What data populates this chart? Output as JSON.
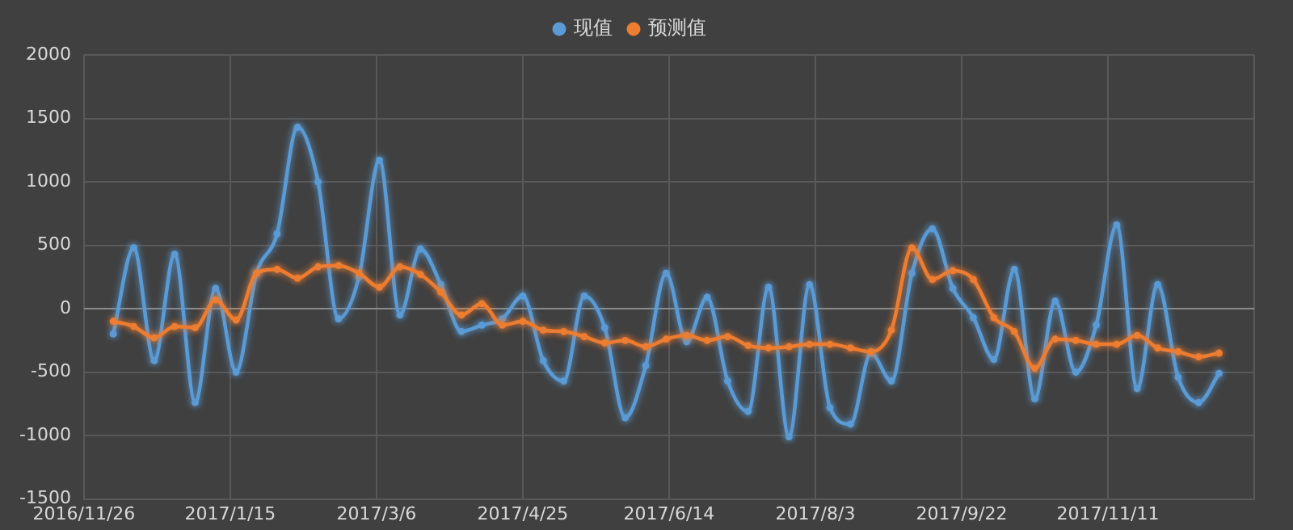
{
  "chart_data": {
    "type": "line",
    "x": [
      "2016-12-06",
      "2016-12-13",
      "2016-12-20",
      "2016-12-27",
      "2017-01-03",
      "2017-01-10",
      "2017-01-17",
      "2017-01-24",
      "2017-01-31",
      "2017-02-07",
      "2017-02-14",
      "2017-02-21",
      "2017-02-28",
      "2017-03-07",
      "2017-03-14",
      "2017-03-21",
      "2017-03-28",
      "2017-04-04",
      "2017-04-11",
      "2017-04-18",
      "2017-04-25",
      "2017-05-02",
      "2017-05-09",
      "2017-05-16",
      "2017-05-23",
      "2017-05-30",
      "2017-06-06",
      "2017-06-13",
      "2017-06-20",
      "2017-06-27",
      "2017-07-04",
      "2017-07-11",
      "2017-07-18",
      "2017-07-25",
      "2017-08-01",
      "2017-08-08",
      "2017-08-15",
      "2017-08-22",
      "2017-08-29",
      "2017-09-05",
      "2017-09-12",
      "2017-09-19",
      "2017-09-26",
      "2017-10-03",
      "2017-10-10",
      "2017-10-17",
      "2017-10-24",
      "2017-10-31",
      "2017-11-07",
      "2017-11-14",
      "2017-11-21",
      "2017-11-28",
      "2017-12-05",
      "2017-12-12",
      "2017-12-19"
    ],
    "series": [
      {
        "name": "现值",
        "color": "#5b9bd5",
        "values": [
          -200,
          480,
          -410,
          430,
          -740,
          160,
          -500,
          280,
          590,
          1430,
          1000,
          -80,
          250,
          1170,
          -50,
          470,
          190,
          -180,
          -130,
          -80,
          100,
          -410,
          -570,
          100,
          -150,
          -860,
          -450,
          280,
          -260,
          90,
          -570,
          -810,
          170,
          -1010,
          190,
          -780,
          -910,
          -350,
          -570,
          280,
          630,
          160,
          -70,
          -400,
          310,
          -710,
          60,
          -500,
          -130,
          660,
          -630,
          190,
          -540,
          -740,
          -510
        ]
      },
      {
        "name": "预测值",
        "color": "#ed7d31",
        "values": [
          -100,
          -140,
          -230,
          -140,
          -150,
          70,
          -90,
          280,
          310,
          240,
          330,
          340,
          280,
          170,
          330,
          270,
          130,
          -50,
          40,
          -130,
          -100,
          -170,
          -180,
          -220,
          -270,
          -250,
          -300,
          -240,
          -210,
          -250,
          -220,
          -290,
          -310,
          -300,
          -280,
          -280,
          -310,
          -340,
          -170,
          480,
          230,
          300,
          230,
          -70,
          -180,
          -470,
          -240,
          -250,
          -280,
          -280,
          -210,
          -310,
          -340,
          -380,
          -350
        ]
      }
    ],
    "xlim": [
      "2016-11-26",
      "2017-12-31"
    ],
    "xticks": [
      {
        "value": "2016-11-26",
        "label": "2016/11/26"
      },
      {
        "value": "2017-01-15",
        "label": "2017/1/15"
      },
      {
        "value": "2017-03-06",
        "label": "2017/3/6"
      },
      {
        "value": "2017-04-25",
        "label": "2017/4/25"
      },
      {
        "value": "2017-06-14",
        "label": "2017/6/14"
      },
      {
        "value": "2017-08-03",
        "label": "2017/8/3"
      },
      {
        "value": "2017-09-22",
        "label": "2017/9/22"
      },
      {
        "value": "2017-11-11",
        "label": "2017/11/11"
      },
      {
        "value": "2017-12-31",
        "label": null
      }
    ],
    "ylim": [
      -1500,
      2000
    ],
    "yticks": [
      -1500,
      -1000,
      -500,
      0,
      500,
      1000,
      1500,
      2000
    ],
    "grid": true,
    "legend": "top",
    "marker": "circle",
    "line_style": "solid"
  }
}
